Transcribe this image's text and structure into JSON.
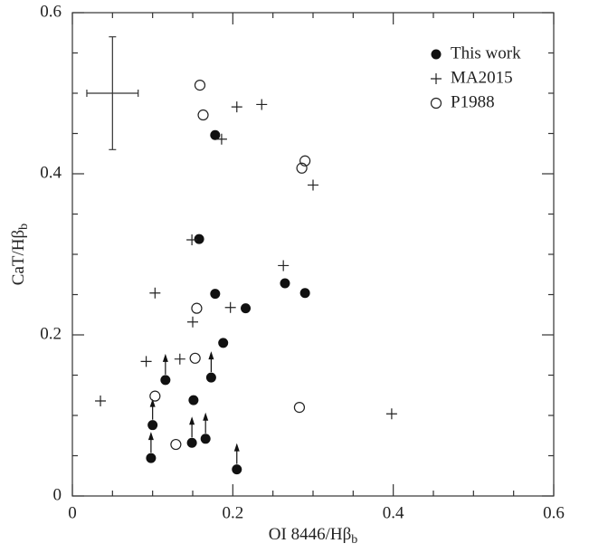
{
  "chart_data": {
    "type": "scatter",
    "xlabel": "OI 8446/Hβ",
    "xlabel_sub": "b",
    "ylabel": "CaT/Hβ",
    "ylabel_sub": "b",
    "xlim": [
      0,
      0.6
    ],
    "ylim": [
      0,
      0.6
    ],
    "xticks": [
      0,
      0.2,
      0.4,
      0.6
    ],
    "yticks": [
      0,
      0.2,
      0.4,
      0.6
    ],
    "xminorticks": [
      0.05,
      0.1,
      0.15,
      0.25,
      0.3,
      0.35,
      0.45,
      0.5,
      0.55
    ],
    "yminorticks": [
      0.05,
      0.1,
      0.15,
      0.25,
      0.3,
      0.35,
      0.45,
      0.5,
      0.55
    ],
    "legend": "upper right",
    "series": [
      {
        "name": "This work",
        "marker": "filled",
        "color": "#111111",
        "x": [
          0.178,
          0.158,
          0.178,
          0.216,
          0.265,
          0.29,
          0.188,
          0.173,
          0.116,
          0.151,
          0.1,
          0.149,
          0.166,
          0.098,
          0.205
        ],
        "values": [
          0.448,
          0.319,
          0.251,
          0.233,
          0.264,
          0.252,
          0.19,
          0.147,
          0.144,
          0.119,
          0.088,
          0.066,
          0.071,
          0.047,
          0.033
        ],
        "lower_limits": [
          false,
          false,
          false,
          false,
          false,
          false,
          false,
          true,
          true,
          false,
          true,
          true,
          true,
          true,
          true
        ]
      },
      {
        "name": "MA2015",
        "marker": "plus",
        "color": "#222222",
        "x": [
          0.205,
          0.236,
          0.186,
          0.3,
          0.149,
          0.263,
          0.103,
          0.197,
          0.15,
          0.092,
          0.134,
          0.035,
          0.398
        ],
        "values": [
          0.483,
          0.486,
          0.443,
          0.386,
          0.318,
          0.286,
          0.252,
          0.234,
          0.216,
          0.167,
          0.17,
          0.118,
          0.102
        ]
      },
      {
        "name": "P1988",
        "marker": "open",
        "color": "#222222",
        "x": [
          0.159,
          0.163,
          0.29,
          0.286,
          0.155,
          0.153,
          0.103,
          0.283,
          0.129
        ],
        "values": [
          0.51,
          0.473,
          0.416,
          0.407,
          0.233,
          0.171,
          0.124,
          0.11,
          0.064
        ]
      }
    ],
    "error_bar": {
      "x": 0.05,
      "y": 0.5,
      "xerr": 0.032,
      "yerr": 0.07
    }
  }
}
